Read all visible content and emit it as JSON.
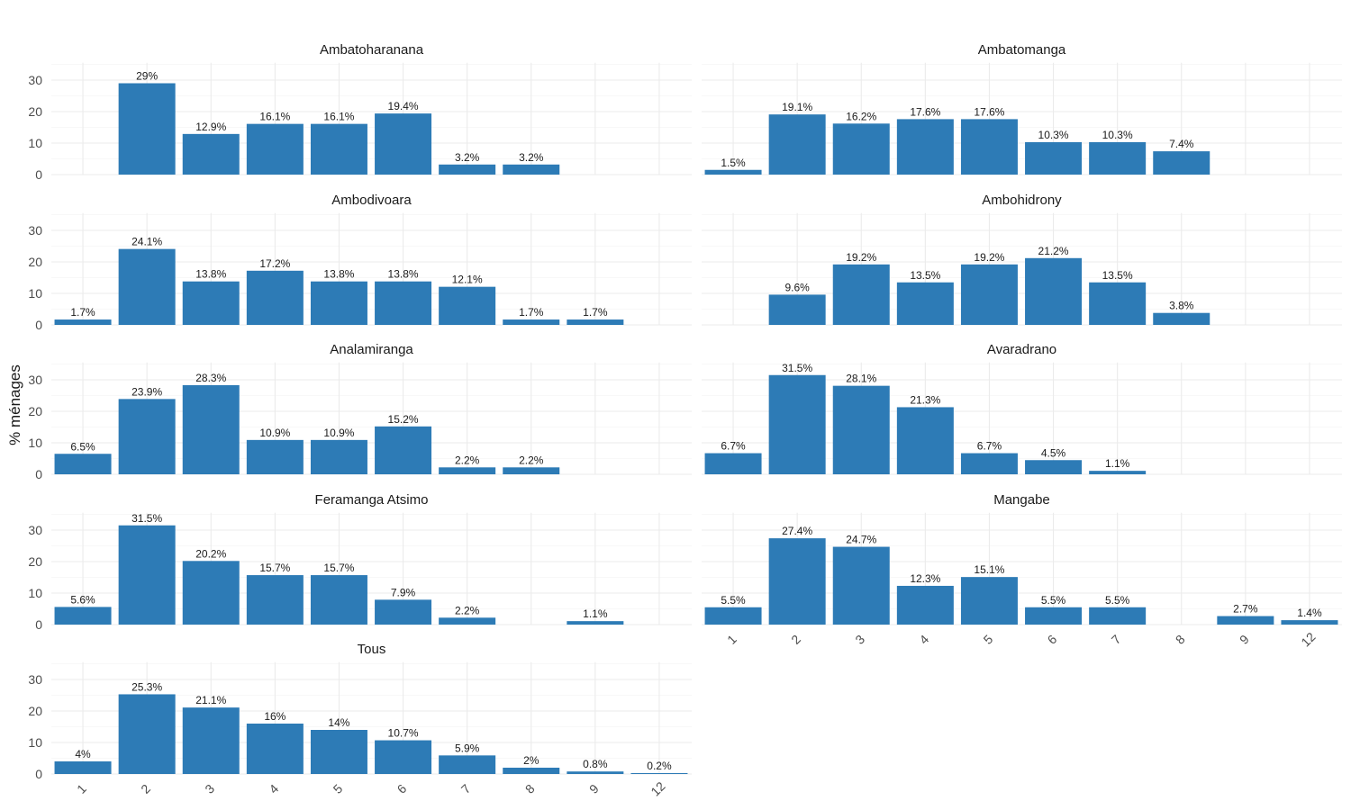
{
  "chart_data": {
    "type": "bar",
    "ylabel": "% ménages",
    "xlabel": "",
    "ylim": [
      0,
      35.5
    ],
    "yticks": [
      0,
      10,
      20,
      30
    ],
    "grid": true,
    "bar_color": "#2d7bb6",
    "categories": [
      "1",
      "2",
      "3",
      "4",
      "5",
      "6",
      "7",
      "8",
      "9",
      "12"
    ],
    "panels": [
      {
        "title": "Ambatoharanana",
        "values": [
          null,
          29,
          12.9,
          16.1,
          16.1,
          19.4,
          3.2,
          3.2,
          null,
          null
        ],
        "labels": [
          null,
          "29%",
          "12.9%",
          "16.1%",
          "16.1%",
          "19.4%",
          "3.2%",
          "3.2%",
          null,
          null
        ]
      },
      {
        "title": "Ambatomanga",
        "values": [
          1.5,
          19.1,
          16.2,
          17.6,
          17.6,
          10.3,
          10.3,
          7.4,
          null,
          null
        ],
        "labels": [
          "1.5%",
          "19.1%",
          "16.2%",
          "17.6%",
          "17.6%",
          "10.3%",
          "10.3%",
          "7.4%",
          null,
          null
        ]
      },
      {
        "title": "Ambodivoara",
        "values": [
          1.7,
          24.1,
          13.8,
          17.2,
          13.8,
          13.8,
          12.1,
          1.7,
          1.7,
          null
        ],
        "labels": [
          "1.7%",
          "24.1%",
          "13.8%",
          "17.2%",
          "13.8%",
          "13.8%",
          "12.1%",
          "1.7%",
          "1.7%",
          null
        ]
      },
      {
        "title": "Ambohidrony",
        "values": [
          null,
          9.6,
          19.2,
          13.5,
          19.2,
          21.2,
          13.5,
          3.8,
          null,
          null
        ],
        "labels": [
          null,
          "9.6%",
          "19.2%",
          "13.5%",
          "19.2%",
          "21.2%",
          "13.5%",
          "3.8%",
          null,
          null
        ]
      },
      {
        "title": "Analamiranga",
        "values": [
          6.5,
          23.9,
          28.3,
          10.9,
          10.9,
          15.2,
          2.2,
          2.2,
          null,
          null
        ],
        "labels": [
          "6.5%",
          "23.9%",
          "28.3%",
          "10.9%",
          "10.9%",
          "15.2%",
          "2.2%",
          "2.2%",
          null,
          null
        ]
      },
      {
        "title": "Avaradrano",
        "values": [
          6.7,
          31.5,
          28.1,
          21.3,
          6.7,
          4.5,
          1.1,
          null,
          null,
          null
        ],
        "labels": [
          "6.7%",
          "31.5%",
          "28.1%",
          "21.3%",
          "6.7%",
          "4.5%",
          "1.1%",
          null,
          null,
          null
        ]
      },
      {
        "title": "Feramanga Atsimo",
        "values": [
          5.6,
          31.5,
          20.2,
          15.7,
          15.7,
          7.9,
          2.2,
          null,
          1.1,
          null
        ],
        "labels": [
          "5.6%",
          "31.5%",
          "20.2%",
          "15.7%",
          "15.7%",
          "7.9%",
          "2.2%",
          null,
          "1.1%",
          null
        ]
      },
      {
        "title": "Mangabe",
        "values": [
          5.5,
          27.4,
          24.7,
          12.3,
          15.1,
          5.5,
          5.5,
          null,
          2.7,
          1.4
        ],
        "labels": [
          "5.5%",
          "27.4%",
          "24.7%",
          "12.3%",
          "15.1%",
          "5.5%",
          "5.5%",
          null,
          "2.7%",
          "1.4%"
        ]
      },
      {
        "title": "Tous",
        "values": [
          4,
          25.3,
          21.1,
          16,
          14,
          10.7,
          5.9,
          2,
          0.8,
          0.2
        ],
        "labels": [
          "4%",
          "25.3%",
          "21.1%",
          "16%",
          "14%",
          "10.7%",
          "5.9%",
          "2%",
          "0.8%",
          "0.2%"
        ]
      }
    ]
  }
}
